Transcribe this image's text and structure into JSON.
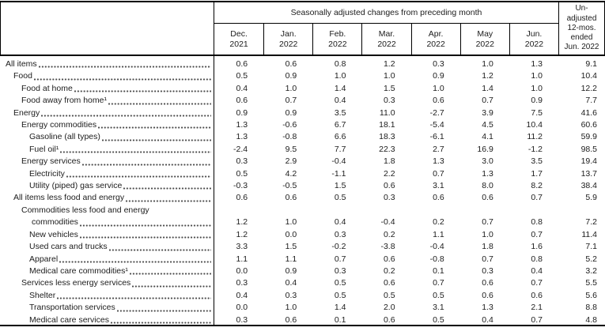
{
  "colors": {
    "border": "#000000",
    "text": "#1c1c1c",
    "leader_dots": "#4a4a4a"
  },
  "table": {
    "group_header": "Seasonally adjusted changes from preceding month",
    "month_columns": [
      {
        "line1": "Dec.",
        "line2": "2021"
      },
      {
        "line1": "Jan.",
        "line2": "2022"
      },
      {
        "line1": "Feb.",
        "line2": "2022"
      },
      {
        "line1": "Mar.",
        "line2": "2022"
      },
      {
        "line1": "Apr.",
        "line2": "2022"
      },
      {
        "line1": "May",
        "line2": "2022"
      },
      {
        "line1": "Jun.",
        "line2": "2022"
      }
    ],
    "unadjusted_header_lines": [
      "Un-",
      "adjusted",
      "12-mos.",
      "ended",
      "Jun. 2022"
    ],
    "rows": [
      {
        "label": "All items",
        "indent": 0,
        "values": [
          "0.6",
          "0.6",
          "0.8",
          "1.2",
          "0.3",
          "1.0",
          "1.3",
          "9.1"
        ]
      },
      {
        "label": "Food",
        "indent": 1,
        "values": [
          "0.5",
          "0.9",
          "1.0",
          "1.0",
          "0.9",
          "1.2",
          "1.0",
          "10.4"
        ]
      },
      {
        "label": "Food at home",
        "indent": 2,
        "values": [
          "0.4",
          "1.0",
          "1.4",
          "1.5",
          "1.0",
          "1.4",
          "1.0",
          "12.2"
        ]
      },
      {
        "label": "Food away from home¹",
        "indent": 2,
        "values": [
          "0.6",
          "0.7",
          "0.4",
          "0.3",
          "0.6",
          "0.7",
          "0.9",
          "7.7"
        ]
      },
      {
        "label": "Energy",
        "indent": 1,
        "values": [
          "0.9",
          "0.9",
          "3.5",
          "11.0",
          "-2.7",
          "3.9",
          "7.5",
          "41.6"
        ]
      },
      {
        "label": "Energy commodities",
        "indent": 2,
        "values": [
          "1.3",
          "-0.6",
          "6.7",
          "18.1",
          "-5.4",
          "4.5",
          "10.4",
          "60.6"
        ]
      },
      {
        "label": "Gasoline (all types)",
        "indent": 3,
        "values": [
          "1.3",
          "-0.8",
          "6.6",
          "18.3",
          "-6.1",
          "4.1",
          "11.2",
          "59.9"
        ]
      },
      {
        "label": "Fuel oil¹",
        "indent": 3,
        "values": [
          "-2.4",
          "9.5",
          "7.7",
          "22.3",
          "2.7",
          "16.9",
          "-1.2",
          "98.5"
        ]
      },
      {
        "label": "Energy services",
        "indent": 2,
        "values": [
          "0.3",
          "2.9",
          "-0.4",
          "1.8",
          "1.3",
          "3.0",
          "3.5",
          "19.4"
        ]
      },
      {
        "label": "Electricity",
        "indent": 3,
        "values": [
          "0.5",
          "4.2",
          "-1.1",
          "2.2",
          "0.7",
          "1.3",
          "1.7",
          "13.7"
        ]
      },
      {
        "label": "Utility (piped) gas service",
        "indent": 3,
        "values": [
          "-0.3",
          "-0.5",
          "1.5",
          "0.6",
          "3.1",
          "8.0",
          "8.2",
          "38.4"
        ]
      },
      {
        "label": "All items less food and energy",
        "indent": 1,
        "values": [
          "0.6",
          "0.6",
          "0.5",
          "0.3",
          "0.6",
          "0.6",
          "0.7",
          "5.9"
        ]
      },
      {
        "label": "Commodities less food and energy",
        "label2": "commodities",
        "indent": 2,
        "values": [
          "1.2",
          "1.0",
          "0.4",
          "-0.4",
          "0.2",
          "0.7",
          "0.8",
          "7.2"
        ]
      },
      {
        "label": "New vehicles",
        "indent": 3,
        "values": [
          "1.2",
          "0.0",
          "0.3",
          "0.2",
          "1.1",
          "1.0",
          "0.7",
          "11.4"
        ]
      },
      {
        "label": "Used cars and trucks",
        "indent": 3,
        "values": [
          "3.3",
          "1.5",
          "-0.2",
          "-3.8",
          "-0.4",
          "1.8",
          "1.6",
          "7.1"
        ]
      },
      {
        "label": "Apparel",
        "indent": 3,
        "values": [
          "1.1",
          "1.1",
          "0.7",
          "0.6",
          "-0.8",
          "0.7",
          "0.8",
          "5.2"
        ]
      },
      {
        "label": "Medical care commodities¹",
        "indent": 3,
        "values": [
          "0.0",
          "0.9",
          "0.3",
          "0.2",
          "0.1",
          "0.3",
          "0.4",
          "3.2"
        ]
      },
      {
        "label": "Services less energy services",
        "indent": 2,
        "values": [
          "0.3",
          "0.4",
          "0.5",
          "0.6",
          "0.7",
          "0.6",
          "0.7",
          "5.5"
        ]
      },
      {
        "label": "Shelter",
        "indent": 3,
        "values": [
          "0.4",
          "0.3",
          "0.5",
          "0.5",
          "0.5",
          "0.6",
          "0.6",
          "5.6"
        ]
      },
      {
        "label": "Transportation services",
        "indent": 3,
        "values": [
          "0.0",
          "1.0",
          "1.4",
          "2.0",
          "3.1",
          "1.3",
          "2.1",
          "8.8"
        ]
      },
      {
        "label": "Medical care services",
        "indent": 3,
        "values": [
          "0.3",
          "0.6",
          "0.1",
          "0.6",
          "0.5",
          "0.4",
          "0.7",
          "4.8"
        ]
      }
    ]
  }
}
